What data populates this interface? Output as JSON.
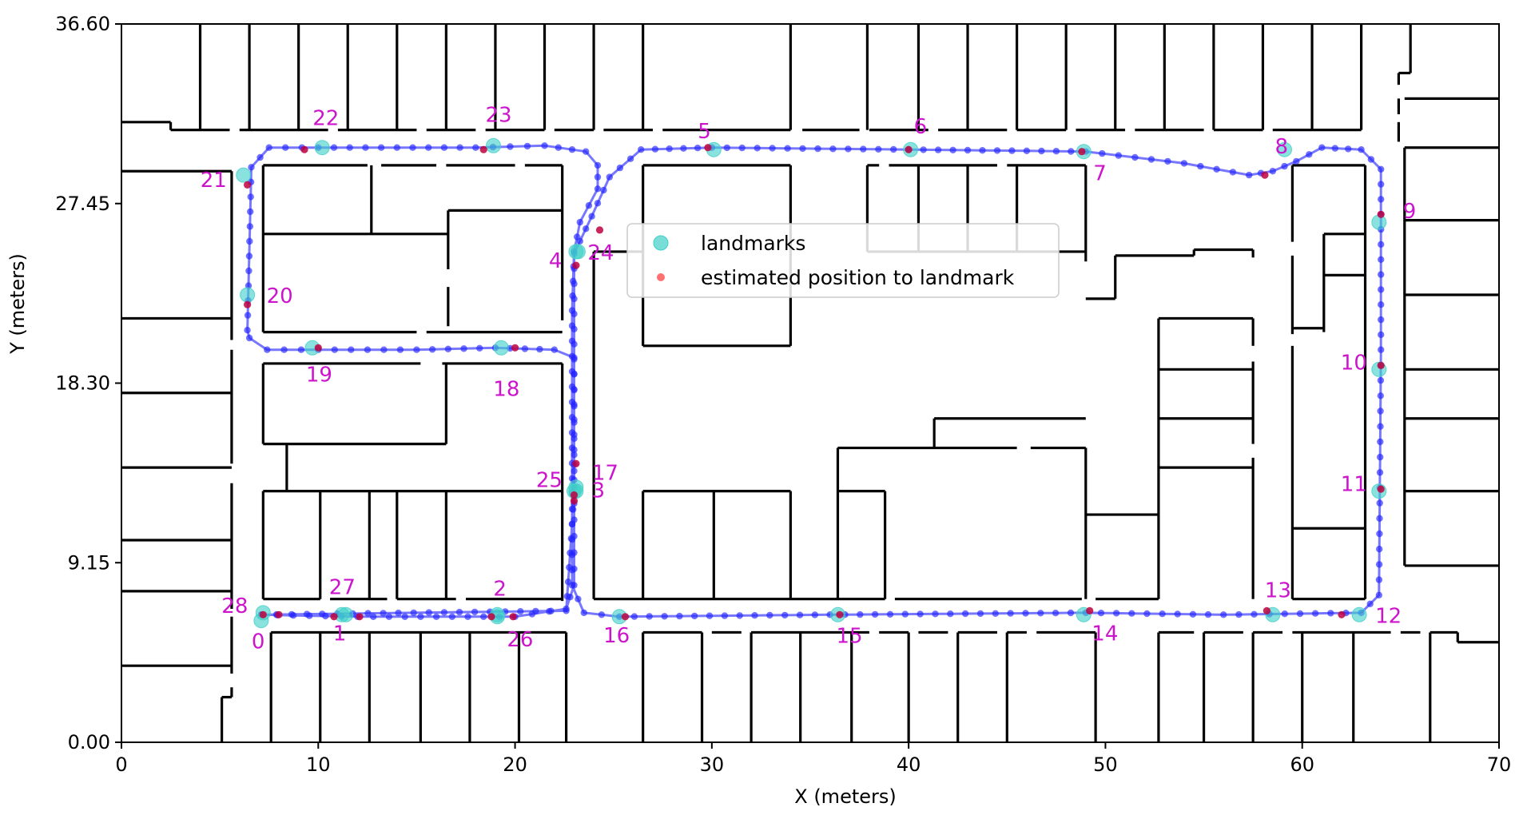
{
  "chart_data": {
    "type": "scatter",
    "xlabel": "X (meters)",
    "ylabel": "Y (meters)",
    "xlim": [
      0,
      70
    ],
    "ylim": [
      0,
      36.6
    ],
    "x_ticks": [
      0,
      10,
      20,
      30,
      40,
      50,
      60,
      70
    ],
    "x_tick_labels": [
      "0",
      "10",
      "20",
      "30",
      "40",
      "50",
      "60",
      "70"
    ],
    "y_ticks": [
      0,
      9.15,
      18.3,
      27.45,
      36.6
    ],
    "y_tick_labels": [
      "0.00",
      "9.15",
      "18.30",
      "27.45",
      "36.60"
    ],
    "grid": false,
    "legend": {
      "placement": "upper-center",
      "entries": [
        {
          "label": "landmarks",
          "color": "#40d0c8",
          "marker": "circle-large"
        },
        {
          "label": "estimated position to landmark",
          "color": "#ff4040",
          "marker": "circle-small"
        }
      ]
    },
    "colors": {
      "trajectory": "#2424ff",
      "landmarks": "#40d0c8",
      "estimates": "#c00040",
      "labels": "#cc14cc",
      "walls": "#000000"
    },
    "trajectory_waypoints": [
      [
        7.1,
        6.5
      ],
      [
        22.6,
        6.7
      ],
      [
        23.0,
        12.6
      ],
      [
        23.0,
        24.9
      ],
      [
        23.9,
        26.8
      ],
      [
        24.8,
        28.8
      ],
      [
        26.4,
        30.2
      ],
      [
        30,
        30.3
      ],
      [
        40,
        30.2
      ],
      [
        49,
        30.1
      ],
      [
        54,
        29.5
      ],
      [
        57.3,
        28.9
      ],
      [
        58.5,
        29.1
      ],
      [
        59.7,
        29.6
      ],
      [
        61,
        30.3
      ],
      [
        63,
        30.2
      ],
      [
        64,
        29.2
      ],
      [
        64,
        20
      ],
      [
        63.9,
        7.5
      ],
      [
        63,
        6.6
      ],
      [
        56,
        6.5
      ],
      [
        49,
        6.6
      ],
      [
        36,
        6.5
      ],
      [
        25.3,
        6.4
      ],
      [
        23.5,
        6.6
      ],
      [
        22.9,
        8.0
      ],
      [
        22.9,
        22
      ],
      [
        23.0,
        25.0
      ],
      [
        23.3,
        26.5
      ],
      [
        24.2,
        28.2
      ],
      [
        24.2,
        29.4
      ],
      [
        23.6,
        30.1
      ],
      [
        21.5,
        30.4
      ],
      [
        18,
        30.3
      ],
      [
        10,
        30.3
      ],
      [
        7.5,
        30.3
      ],
      [
        6.6,
        29.3
      ],
      [
        6.4,
        21
      ],
      [
        6.5,
        20.6
      ],
      [
        7.4,
        20.0
      ],
      [
        10,
        20.0
      ],
      [
        15,
        20.0
      ],
      [
        19,
        20.1
      ],
      [
        22,
        20.0
      ],
      [
        23.0,
        19.6
      ],
      [
        23.0,
        13.0
      ],
      [
        23.0,
        8.0
      ],
      [
        22.6,
        6.8
      ],
      [
        20,
        6.4
      ],
      [
        12,
        6.4
      ],
      [
        7.1,
        6.5
      ]
    ],
    "landmarks": [
      {
        "label": "0",
        "x": 7.1,
        "y": 6.2,
        "est_x": 7.2,
        "est_y": 6.5
      },
      {
        "label": "1",
        "x": 11.4,
        "y": 6.5,
        "est_x": 10.8,
        "est_y": 6.4
      },
      {
        "label": "2",
        "x": 19.1,
        "y": 6.5,
        "est_x": 18.8,
        "est_y": 6.4
      },
      {
        "label": "3",
        "x": 23.0,
        "y": 12.8,
        "est_x": 23.0,
        "est_y": 12.3
      },
      {
        "label": "4",
        "x": 23.1,
        "y": 25.0,
        "est_x": 23.1,
        "est_y": 24.3
      },
      {
        "label": "5",
        "x": 30.1,
        "y": 30.2,
        "est_x": 29.8,
        "est_y": 30.3
      },
      {
        "label": "6",
        "x": 40.1,
        "y": 30.2,
        "est_x": 40.0,
        "est_y": 30.2
      },
      {
        "label": "7",
        "x": 48.9,
        "y": 30.1,
        "est_x": 48.8,
        "est_y": 30.1
      },
      {
        "label": "8",
        "x": 59.1,
        "y": 30.2,
        "est_x": 58.1,
        "est_y": 28.9
      },
      {
        "label": "9",
        "x": 63.9,
        "y": 26.5,
        "est_x": 64.0,
        "est_y": 26.9
      },
      {
        "label": "10",
        "x": 63.9,
        "y": 19.0,
        "est_x": 64.0,
        "est_y": 19.2
      },
      {
        "label": "11",
        "x": 63.9,
        "y": 12.8,
        "est_x": 64.0,
        "est_y": 12.9
      },
      {
        "label": "12",
        "x": 62.9,
        "y": 6.5,
        "est_x": 62.0,
        "est_y": 6.5
      },
      {
        "label": "13",
        "x": 58.5,
        "y": 6.5,
        "est_x": 58.2,
        "est_y": 6.7
      },
      {
        "label": "14",
        "x": 48.9,
        "y": 6.5,
        "est_x": 49.2,
        "est_y": 6.7
      },
      {
        "label": "15",
        "x": 36.4,
        "y": 6.5,
        "est_x": 36.5,
        "est_y": 6.5
      },
      {
        "label": "16",
        "x": 25.3,
        "y": 6.4,
        "est_x": 25.6,
        "est_y": 6.4
      },
      {
        "label": "17",
        "x": 23.1,
        "y": 12.8,
        "est_x": 23.0,
        "est_y": 12.6
      },
      {
        "label": "18",
        "x": 19.3,
        "y": 20.1,
        "est_x": 20.0,
        "est_y": 20.1
      },
      {
        "label": "19",
        "x": 9.7,
        "y": 20.1,
        "est_x": 10.0,
        "est_y": 20.1
      },
      {
        "label": "20",
        "x": 6.4,
        "y": 22.8,
        "est_x": 6.4,
        "est_y": 22.3
      },
      {
        "label": "21",
        "x": 6.2,
        "y": 28.9,
        "est_x": 6.4,
        "est_y": 28.4
      },
      {
        "label": "22",
        "x": 10.2,
        "y": 30.3,
        "est_x": 9.3,
        "est_y": 30.2
      },
      {
        "label": "23",
        "x": 18.9,
        "y": 30.4,
        "est_x": 18.4,
        "est_y": 30.2
      },
      {
        "label": "24",
        "x": 23.2,
        "y": 25.0,
        "est_x": 24.3,
        "est_y": 26.1
      },
      {
        "label": "25",
        "x": 23.1,
        "y": 13.0,
        "est_x": 23.1,
        "est_y": 14.2
      },
      {
        "label": "26",
        "x": 19.1,
        "y": 6.4,
        "est_x": 19.9,
        "est_y": 6.4
      },
      {
        "label": "27",
        "x": 11.2,
        "y": 6.5,
        "est_x": 12.1,
        "est_y": 6.4
      },
      {
        "label": "28",
        "x": 7.2,
        "y": 6.6,
        "est_x": 8.0,
        "est_y": 6.5
      }
    ]
  }
}
